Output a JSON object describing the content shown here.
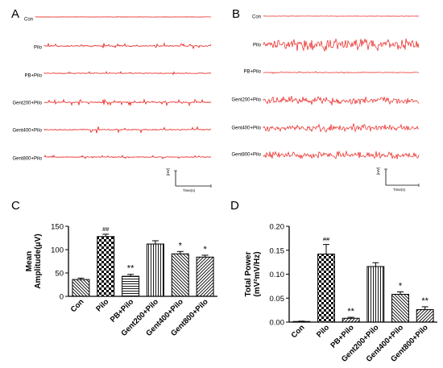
{
  "panels": {
    "A": {
      "letter": "A",
      "traces": [
        "Con",
        "Pilo",
        "PB+Pilo",
        "Gent200+Pilo",
        "Gent400+Pilo",
        "Gent800+Pilo"
      ],
      "scale_y_label": "[mV]",
      "scale_x_label": "Time(s)"
    },
    "B": {
      "letter": "B",
      "traces": [
        "Con",
        "Pilo",
        "PB+Pilo",
        "Gent200+Pilo",
        "Gent400+Pilo",
        "Gent800+Pilo"
      ],
      "scale_y_label": "[mV]",
      "scale_x_label": "Time(s)"
    },
    "C": {
      "letter": "C"
    },
    "D": {
      "letter": "D"
    }
  },
  "colors": {
    "trace": "#e8201c",
    "axis": "#000000"
  },
  "chart_data": [
    {
      "type": "bar",
      "panel": "C",
      "categories": [
        "Con",
        "Pilo",
        "PB+Pilo",
        "Gent200+Pilo",
        "Gent400+Pilo",
        "Gent800+Pilo"
      ],
      "values": [
        36,
        128,
        43,
        112,
        91,
        84
      ],
      "errors": [
        3,
        5,
        4,
        7,
        5,
        4
      ],
      "patterns": [
        "diag-down",
        "checker",
        "hlines",
        "vlines",
        "diag-down",
        "diag-up"
      ],
      "annotations": [
        "",
        "##",
        "**",
        "",
        "*",
        "*"
      ],
      "ylabel_lines": [
        "Mean",
        "Amplitude(μV)"
      ],
      "ylim": [
        0,
        150
      ],
      "yticks": [
        0,
        50,
        100,
        150
      ],
      "ytick_labels": [
        "0",
        "50",
        "100",
        "150"
      ]
    },
    {
      "type": "bar",
      "panel": "D",
      "categories": [
        "Con",
        "Pilo",
        "PB+Pilo",
        "Gent200+Pilo",
        "Gent400+Pilo",
        "Gent800+Pilo"
      ],
      "values": [
        0.001,
        0.142,
        0.008,
        0.116,
        0.058,
        0.026
      ],
      "errors": [
        0.001,
        0.02,
        0.002,
        0.008,
        0.005,
        0.006
      ],
      "patterns": [
        "diag-down",
        "checker",
        "diag-up",
        "vlines",
        "diag-down",
        "diag-up"
      ],
      "annotations": [
        "",
        "##",
        "**",
        "",
        "*",
        "**"
      ],
      "ylabel_lines": [
        "Total Power",
        "(mV²mV/Hz)"
      ],
      "ylim": [
        0,
        0.2
      ],
      "yticks": [
        0,
        0.05,
        0.1,
        0.15,
        0.2
      ],
      "ytick_labels": [
        "0.00",
        "0.05",
        "0.10",
        "0.15",
        "0.20"
      ]
    }
  ]
}
